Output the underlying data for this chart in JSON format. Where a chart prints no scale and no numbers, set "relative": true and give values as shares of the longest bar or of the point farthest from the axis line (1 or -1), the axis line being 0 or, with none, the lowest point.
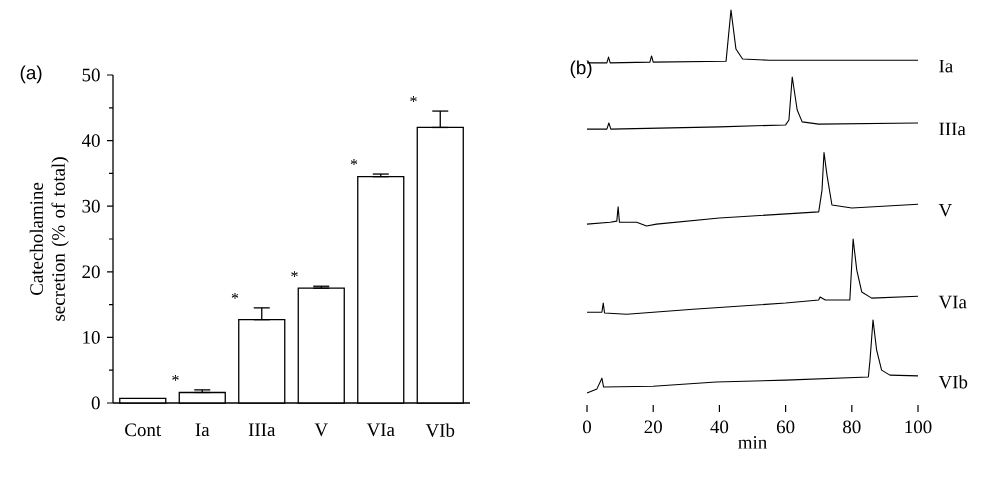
{
  "chart_data": [
    {
      "type": "bar",
      "title": "(a)",
      "ylabel": "Catecholamine secretion (% of total)",
      "categories": [
        "Cont",
        "Ia",
        "IIIa",
        "V",
        "VIa",
        "VIb"
      ],
      "values": [
        0.7,
        1.6,
        12.7,
        17.5,
        34.5,
        42
      ],
      "errors": [
        null,
        [
          1.6,
          2.0
        ],
        [
          12.7,
          14.5
        ],
        [
          17.5,
          17.8
        ],
        [
          34.5,
          34.9
        ],
        [
          42,
          44.5
        ]
      ],
      "color": "#ffffff",
      "ylim": [
        0,
        50
      ],
      "yticks": [
        0,
        10,
        20,
        30,
        40,
        50
      ],
      "annotations": [
        "*",
        "*",
        "*",
        "*",
        "*"
      ]
    },
    {
      "type": "line",
      "title": "(b)",
      "xlabel": "min",
      "relative": true,
      "tick_labels": "x",
      "marker": "none",
      "xlim": [
        0,
        100
      ],
      "xticks": [
        0,
        20,
        40,
        60,
        80,
        100
      ],
      "series": [
        {
          "name": "Ia",
          "color": "#000000",
          "x": [
            0,
            6,
            6.5,
            7,
            19,
            19.5,
            20,
            42,
            43.5,
            45,
            47,
            55,
            100
          ],
          "values": [
            0.862,
            0.862,
            0.877,
            0.862,
            0.864,
            0.88,
            0.864,
            0.866,
            1.0,
            0.898,
            0.872,
            0.869,
            0.869
          ]
        },
        {
          "name": "IIIa",
          "color": "#000000",
          "x": [
            0,
            6,
            6.6,
            7.2,
            40,
            60,
            61,
            62,
            63.5,
            65,
            70,
            100
          ],
          "values": [
            0.689,
            0.689,
            0.705,
            0.689,
            0.695,
            0.7,
            0.713,
            0.825,
            0.739,
            0.708,
            0.702,
            0.705
          ]
        },
        {
          "name": "V",
          "color": "#000000",
          "x": [
            0,
            7,
            9,
            9.4,
            9.8,
            15,
            18,
            21,
            40,
            70,
            71,
            71.6,
            72.5,
            74,
            80,
            100
          ],
          "values": [
            0.441,
            0.446,
            0.449,
            0.486,
            0.446,
            0.446,
            0.436,
            0.441,
            0.457,
            0.473,
            0.53,
            0.628,
            0.569,
            0.491,
            0.483,
            0.493
          ]
        },
        {
          "name": "VIa",
          "color": "#000000",
          "x": [
            0,
            4.5,
            4.9,
            5.3,
            12,
            32,
            60,
            70,
            70.4,
            72,
            79.4,
            80.4,
            81.5,
            83,
            86,
            100
          ],
          "values": [
            0.211,
            0.211,
            0.235,
            0.209,
            0.206,
            0.219,
            0.235,
            0.243,
            0.251,
            0.243,
            0.243,
            0.402,
            0.321,
            0.264,
            0.248,
            0.253
          ]
        },
        {
          "name": "VIb",
          "color": "#000000",
          "x": [
            0,
            3,
            4.5,
            5,
            20,
            39,
            60,
            85,
            85.5,
            86.4,
            87.5,
            89,
            91.5,
            100
          ],
          "values": [
            0,
            0.011,
            0.039,
            0.016,
            0.018,
            0.029,
            0.034,
            0.042,
            0.086,
            0.191,
            0.112,
            0.06,
            0.047,
            0.045
          ]
        }
      ]
    }
  ]
}
